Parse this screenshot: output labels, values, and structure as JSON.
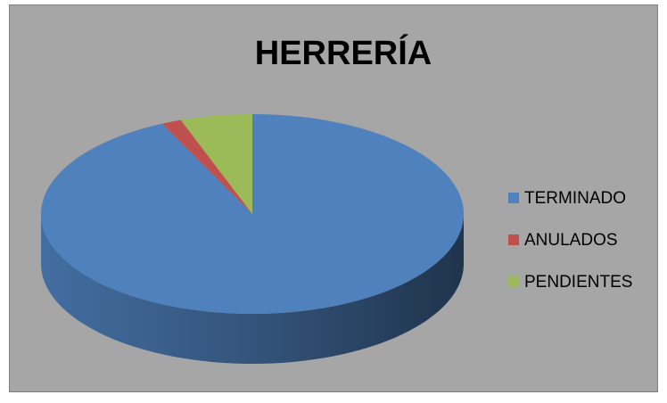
{
  "chart_data": {
    "type": "pie3d",
    "title": "HERRERÍA",
    "categories": [
      "TERMINADO",
      "ANULADOS",
      "PENDIENTES"
    ],
    "values": [
      93,
      1.5,
      5.5
    ],
    "colors": [
      "#4f81bd",
      "#c0504d",
      "#9bbb59"
    ],
    "legend": "right"
  }
}
